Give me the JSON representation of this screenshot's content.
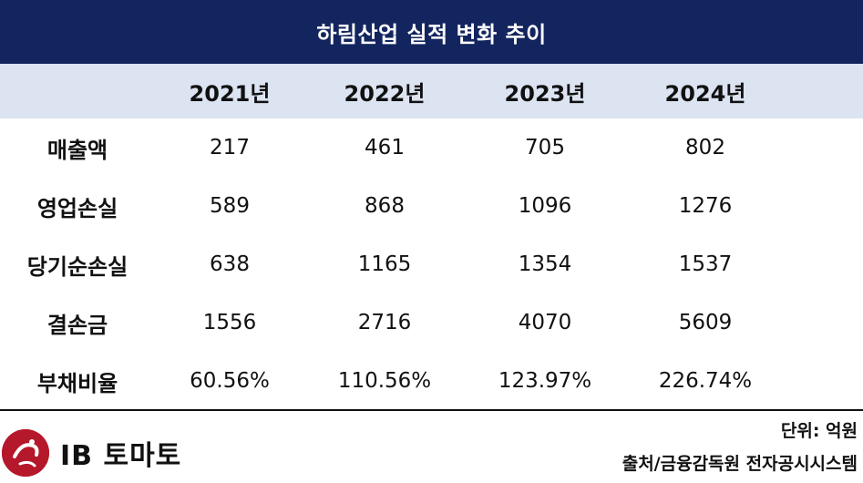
{
  "title": "하림산업 실적 변화 추이",
  "table": {
    "columns": [
      "",
      "2021년",
      "2022년",
      "2023년",
      "2024년"
    ],
    "rows": [
      {
        "label": "매출액",
        "values": [
          "217",
          "461",
          "705",
          "802"
        ]
      },
      {
        "label": "영업손실",
        "values": [
          "589",
          "868",
          "1096",
          "1276"
        ]
      },
      {
        "label": "당기순손실",
        "values": [
          "638",
          "1165",
          "1354",
          "1537"
        ]
      },
      {
        "label": "결손금",
        "values": [
          "1556",
          "2716",
          "4070",
          "5609"
        ]
      },
      {
        "label": "부채비율",
        "values": [
          "60.56%",
          "110.56%",
          "123.97%",
          "226.74%"
        ]
      }
    ]
  },
  "footer": {
    "unit": "단위: 억원",
    "source": "출처/금융감독원 전자공시시스템",
    "logo_text": "IB 토마토"
  },
  "colors": {
    "title_bg": "#13255e",
    "header_bg": "#dce3f1",
    "logo_red": "#b5182a"
  }
}
